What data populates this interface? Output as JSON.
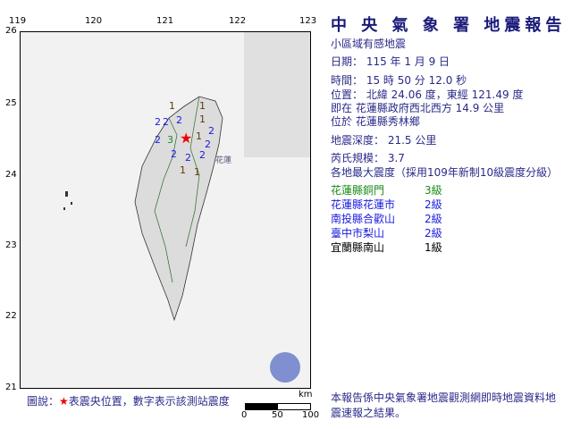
{
  "title": "中 央 氣 象 署 地震報告",
  "subtitle": "小區域有感地震",
  "date": "日期： 115 年 1 月 9 日",
  "time": "時間： 15 時 50 分 12.0 秒",
  "location": "位置： 北緯 24.06 度，東經 121.49 度",
  "relative": "即在 花蓮縣政府西北西方 14.9 公里",
  "area": "位於 花蓮縣秀林鄉",
  "depth": "地震深度： 21.5 公里",
  "magnitude": "芮氏規模： 3.7",
  "intensity_header": "各地最大震度（採用109年新制10級震度分級）",
  "stations": [
    {
      "name": "花蓮縣銅門",
      "level": "3級",
      "color": "#1a8a1a"
    },
    {
      "name": "花蓮縣花蓮市",
      "level": "2級",
      "color": "#1a1ae0"
    },
    {
      "name": "南投縣合歡山",
      "level": "2級",
      "color": "#1a1ae0"
    },
    {
      "name": "臺中市梨山",
      "level": "2級",
      "color": "#1a1ae0"
    },
    {
      "name": "宜蘭縣南山",
      "level": "1級",
      "color": "#000000"
    }
  ],
  "axes": {
    "lon": [
      "119",
      "120",
      "121",
      "122",
      "123"
    ],
    "lat": [
      "26",
      "25",
      "24",
      "23",
      "22",
      "21"
    ]
  },
  "map_labels": {
    "city": "花蓮",
    "intensities": [
      "1",
      "1",
      "1",
      "1",
      "2",
      "2",
      "2",
      "2",
      "2",
      "2",
      "2",
      "2",
      "2",
      "1",
      "1",
      "3"
    ]
  },
  "legend": {
    "prefix": "圖說：",
    "star": "★",
    "text": "表震央位置，數字表示該測站震度"
  },
  "scale": {
    "unit": "km",
    "ticks": [
      "0",
      "50",
      "100"
    ]
  },
  "note": "本報告係中央氣象署地震觀測網即時地震資料地震速報之結果。"
}
